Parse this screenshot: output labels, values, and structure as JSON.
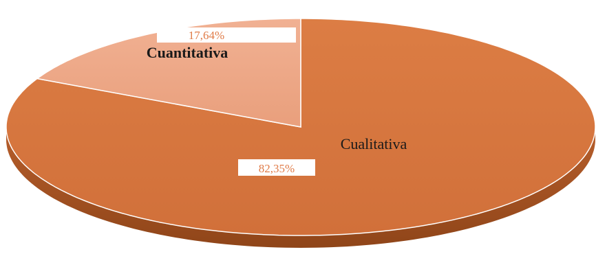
{
  "chart_data": {
    "type": "pie",
    "style": "3d",
    "categories": [
      "Cualitativa",
      "Cuantitativa"
    ],
    "values": [
      82.35,
      17.64
    ],
    "value_labels": [
      "82,35%",
      "17,64%"
    ],
    "colors": [
      "#d9773f",
      "#eea888"
    ],
    "title": "",
    "legend": "none"
  }
}
